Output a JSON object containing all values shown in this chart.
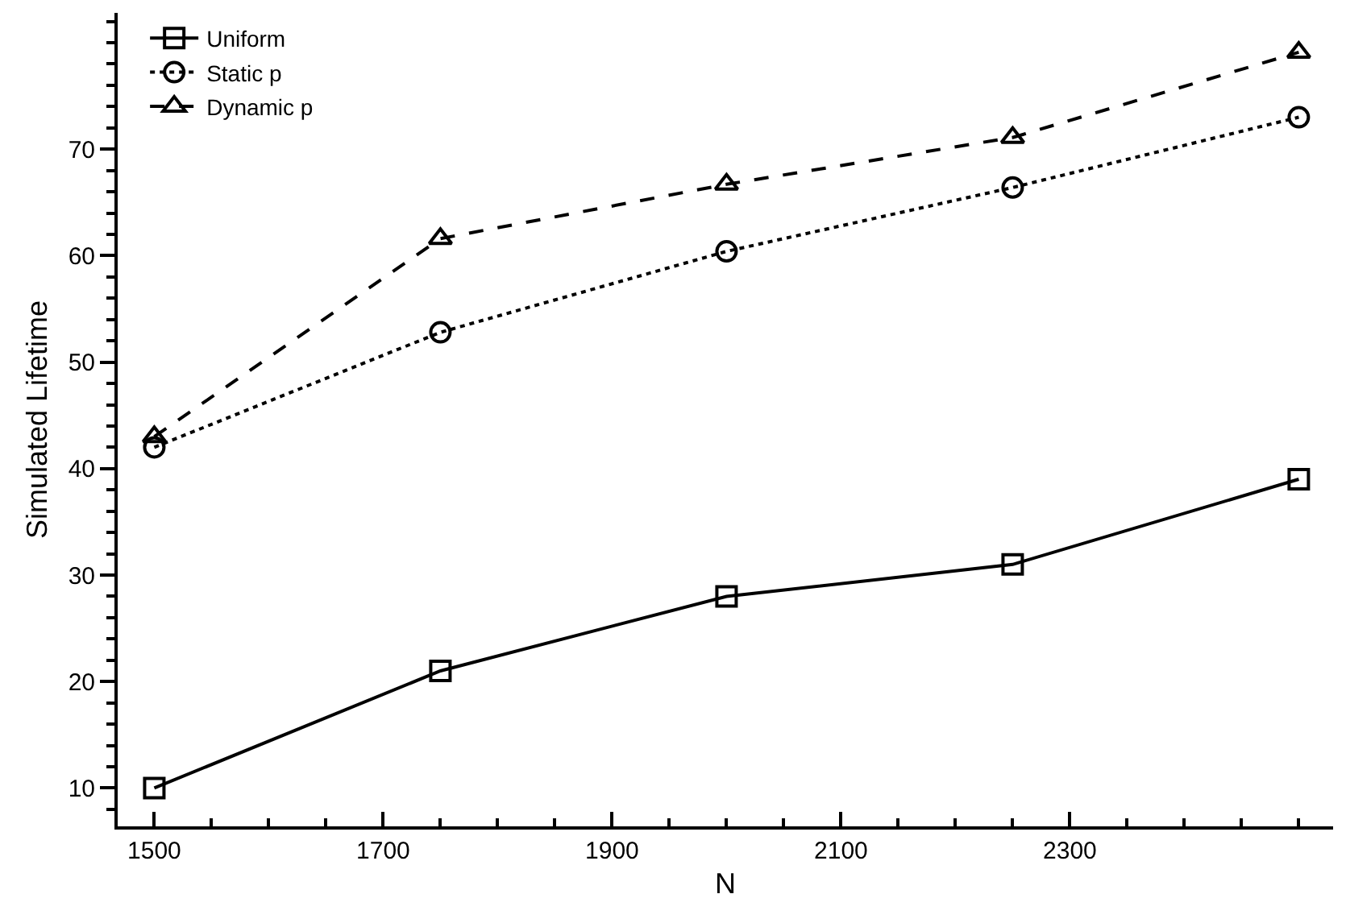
{
  "chart_data": {
    "type": "line",
    "xlabel": "N",
    "ylabel": "Simulated Lifetime",
    "x": [
      1500,
      1750,
      2000,
      2250,
      2500
    ],
    "series": [
      {
        "name": "Uniform",
        "color": "#000000",
        "values": [
          10,
          21,
          28,
          31,
          39
        ],
        "marker": "square",
        "line_style": "solid"
      },
      {
        "name": "Static p",
        "color": "#000000",
        "values": [
          42,
          52.8,
          60.4,
          66.4,
          73
        ],
        "marker": "circle",
        "line_style": "dotted"
      },
      {
        "name": "Dynamic p",
        "color": "#000000",
        "values": [
          43,
          61.6,
          66.7,
          71.1,
          79.1
        ],
        "marker": "triangle",
        "line_style": "dashed"
      }
    ],
    "xlim": [
      1468,
      2530
    ],
    "xticks": [
      1500,
      1700,
      1900,
      2100,
      2300
    ],
    "ylim": [
      6.4,
      82.8
    ],
    "yticks": [
      10,
      20,
      30,
      40,
      50,
      60,
      70
    ],
    "grid": false,
    "legend": "top left"
  }
}
